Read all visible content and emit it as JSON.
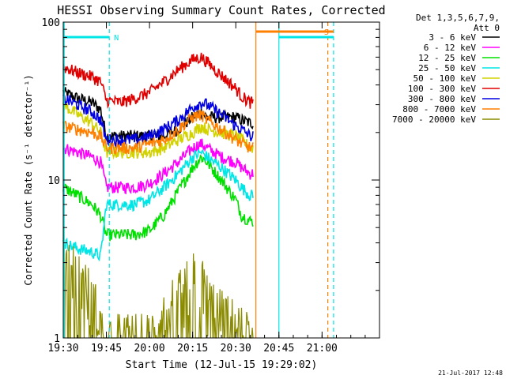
{
  "chart_data": {
    "type": "line",
    "title": "HESSI Observing Summary Count Rates, Corrected",
    "xlabel": "Start Time (12-Jul-15 19:29:02)",
    "ylabel": "Corrected Count Rate (s⁻¹ detector⁻¹)",
    "yscale": "log",
    "ylim": [
      1,
      100
    ],
    "xlim_minutes": [
      19.5,
      21.333
    ],
    "x_ticks": [
      "19:30",
      "19:45",
      "20:00",
      "20:15",
      "20:30",
      "20:45",
      "21:00"
    ],
    "y_ticks": [
      "1",
      "10",
      "100"
    ],
    "legend_header": [
      "Det 1,3,5,6,7,9,",
      "Att 0"
    ],
    "legend_position": "right",
    "footer_date": "21-Jul-2017 12:48",
    "flags": [
      {
        "label": "N",
        "color": "#00e5e5",
        "start": "19:30",
        "end": "19:46"
      },
      {
        "label": "S",
        "color": "#ff7f00",
        "start": "20:37",
        "end": "21:04"
      }
    ],
    "bar_cyan_2": {
      "color": "#00e5e5",
      "start": "20:45",
      "end": "21:04"
    },
    "vlines": [
      {
        "time": "19:30:20",
        "color": "#00e5e5",
        "style": "solid"
      },
      {
        "time": "19:46",
        "color": "#00e5e5",
        "style": "dashed"
      },
      {
        "time": "20:37",
        "color": "#ff7f00",
        "style": "solid"
      },
      {
        "time": "20:45",
        "color": "#00e5e5",
        "style": "solid"
      },
      {
        "time": "21:02",
        "color": "#ff7f00",
        "style": "dashed"
      },
      {
        "time": "21:04",
        "color": "#00e5e5",
        "style": "dashed"
      }
    ],
    "gap": {
      "start": "20:36",
      "end": "21:20"
    },
    "time_points": [
      "19:30",
      "19:35",
      "19:40",
      "19:43",
      "19:45",
      "19:50",
      "19:55",
      "20:00",
      "20:05",
      "20:10",
      "20:15",
      "20:18",
      "20:20",
      "20:25",
      "20:30",
      "20:32",
      "20:35"
    ],
    "series": [
      {
        "name": "3 - 6 keV",
        "color": "#000000",
        "values": [
          36,
          33,
          31,
          28,
          19,
          19,
          19,
          19,
          19,
          21,
          25,
          27,
          25,
          25,
          25,
          24,
          23
        ]
      },
      {
        "name": "6 - 12 keV",
        "color": "#ff00ff",
        "values": [
          16,
          15,
          14,
          13,
          9,
          9,
          9,
          9.5,
          11,
          13,
          16,
          17,
          16,
          14,
          13,
          12,
          11
        ]
      },
      {
        "name": "12 - 25 keV",
        "color": "#00e000",
        "values": [
          9,
          8,
          7,
          6,
          4.5,
          4.5,
          4.5,
          4.8,
          6,
          8.5,
          12,
          14,
          13,
          10,
          7.5,
          6,
          5.5
        ]
      },
      {
        "name": "25 - 50 keV",
        "color": "#00e5e5",
        "values": [
          4,
          3.7,
          3.5,
          3.3,
          7,
          7,
          7,
          7.5,
          9,
          11,
          14,
          15,
          14,
          12,
          10,
          9,
          8
        ]
      },
      {
        "name": "50 - 100 keV",
        "color": "#d2d200",
        "values": [
          30,
          26,
          23,
          20,
          15,
          15,
          15,
          15,
          16,
          18,
          20,
          22,
          21,
          20,
          19,
          18,
          16
        ]
      },
      {
        "name": "100 - 300 keV",
        "color": "#e00000",
        "values": [
          52,
          48,
          45,
          42,
          32,
          31,
          33,
          36,
          42,
          50,
          58,
          60,
          56,
          46,
          38,
          34,
          31
        ]
      },
      {
        "name": "300 - 800 keV",
        "color": "#0000e0",
        "values": [
          33,
          30,
          27,
          24,
          18,
          18,
          18,
          19,
          21,
          24,
          29,
          31,
          30,
          26,
          22,
          21,
          19
        ]
      },
      {
        "name": "800 - 7000 keV",
        "color": "#ff7f00",
        "values": [
          22,
          21,
          20,
          19,
          16,
          16,
          16,
          17,
          18,
          21,
          25,
          26,
          24,
          21,
          18,
          17,
          16
        ]
      },
      {
        "name": "7000 - 20000 keV",
        "color": "#8b8b00",
        "values": [
          3.6,
          2.6,
          1.8,
          1.4,
          1,
          1,
          1,
          1,
          1.4,
          1.8,
          2.4,
          2.5,
          1.8,
          1.4,
          1.2,
          1.1,
          1
        ]
      }
    ]
  }
}
